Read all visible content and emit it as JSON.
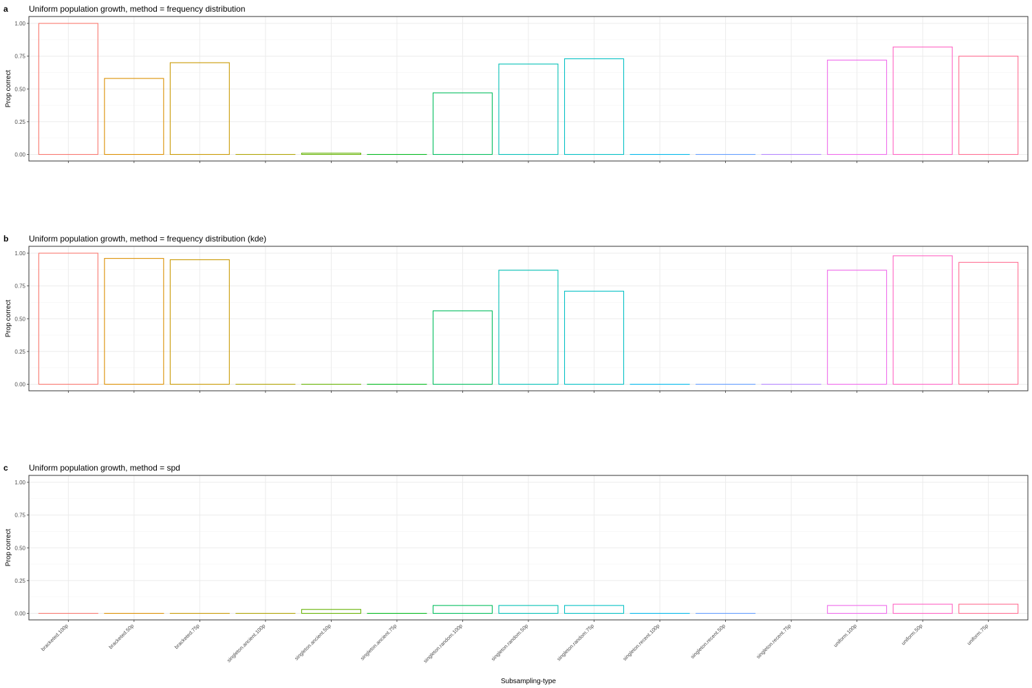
{
  "figure": {
    "xlabel": "Subsampling-type"
  },
  "chart_data": [
    {
      "type": "bar",
      "panel_label": "a",
      "title": "Uniform population growth, method = frequency distribution",
      "xlabel": "",
      "ylabel": "Prop correct",
      "ylim": [
        0,
        1
      ],
      "yticks": [
        "0.00",
        "0.25",
        "0.50",
        "0.75",
        "1.00"
      ],
      "grid": true,
      "categories": [
        "bracketed.100p",
        "bracketed.50p",
        "bracketed.75p",
        "singleton.ancient.100p",
        "singleton.ancient.50p",
        "singleton.ancient.75p",
        "singleton.random.100p",
        "singleton.random.50p",
        "singleton.random.75p",
        "singleton.recent.100p",
        "singleton.recent.50p",
        "singleton.recent.75p",
        "uniform.100p",
        "uniform.50p",
        "uniform.75p"
      ],
      "values": [
        1.0,
        0.58,
        0.7,
        0.0,
        0.01,
        0.0,
        0.47,
        0.69,
        0.73,
        0.0,
        0.0,
        0.0,
        0.72,
        0.82,
        0.75
      ]
    },
    {
      "type": "bar",
      "panel_label": "b",
      "title": "Uniform population growth, method = frequency distribution (kde)",
      "xlabel": "",
      "ylabel": "Prop correct",
      "ylim": [
        0,
        1
      ],
      "yticks": [
        "0.00",
        "0.25",
        "0.50",
        "0.75",
        "1.00"
      ],
      "grid": true,
      "categories": [
        "bracketed.100p",
        "bracketed.50p",
        "bracketed.75p",
        "singleton.ancient.100p",
        "singleton.ancient.50p",
        "singleton.ancient.75p",
        "singleton.random.100p",
        "singleton.random.50p",
        "singleton.random.75p",
        "singleton.recent.100p",
        "singleton.recent.50p",
        "singleton.recent.75p",
        "uniform.100p",
        "uniform.50p",
        "uniform.75p"
      ],
      "values": [
        1.0,
        0.96,
        0.95,
        0.0,
        0.0,
        0.0,
        0.56,
        0.87,
        0.71,
        0.0,
        0.0,
        0.0,
        0.87,
        0.98,
        0.93
      ]
    },
    {
      "type": "bar",
      "panel_label": "c",
      "title": "Uniform population growth, method = spd",
      "xlabel": "Subsampling-type",
      "ylabel": "Prop correct",
      "ylim": [
        0,
        1
      ],
      "yticks": [
        "0.00",
        "0.25",
        "0.50",
        "0.75",
        "1.00"
      ],
      "grid": true,
      "categories": [
        "bracketed.100p",
        "bracketed.50p",
        "bracketed.75p",
        "singleton.ancient.100p",
        "singleton.ancient.50p",
        "singleton.ancient.75p",
        "singleton.random.100p",
        "singleton.random.50p",
        "singleton.random.75p",
        "singleton.recent.100p",
        "singleton.recent.50p",
        "singleton.recent.75p",
        "uniform.100p",
        "uniform.50p",
        "uniform.75p"
      ],
      "values": [
        0.0,
        0.0,
        0.0,
        0.0,
        0.03,
        0.0,
        0.06,
        0.06,
        0.06,
        0.0,
        0.0,
        null,
        0.06,
        0.07,
        0.07
      ]
    }
  ],
  "colors": {
    "bracketed.100p": "#F8766D",
    "bracketed.50p": "#DB8E00",
    "bracketed.75p": "#C99800",
    "singleton.ancient.100p": "#AEA200",
    "singleton.ancient.50p": "#64B200",
    "singleton.ancient.75p": "#00B81B",
    "singleton.random.100p": "#00BD5C",
    "singleton.random.50p": "#00BFB4",
    "singleton.random.75p": "#00BFC4",
    "singleton.recent.100p": "#00B6EB",
    "singleton.recent.50p": "#619CFF",
    "singleton.recent.75p": "#B385FF",
    "uniform.100p": "#EF67EB",
    "uniform.50p": "#FF61C3",
    "uniform.75p": "#FF6C91",
    "panel_border": "#333333",
    "grid_major": "#EBEBEB",
    "grid_minor": "#F5F5F5",
    "axis_text": "#4D4D4D",
    "text": "#000000"
  }
}
